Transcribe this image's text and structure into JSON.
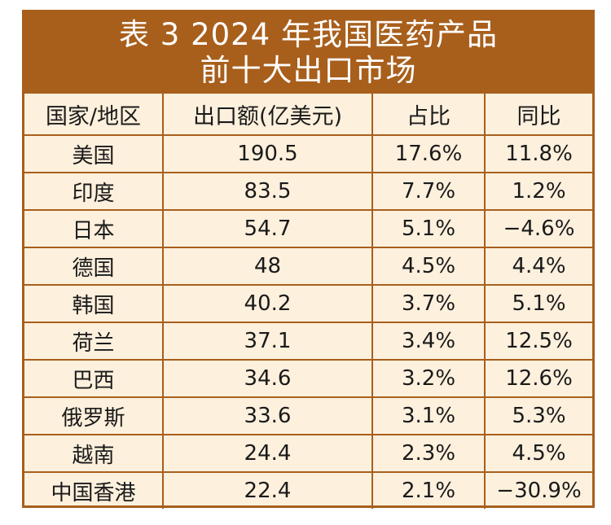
{
  "title": {
    "line1": "表 3  2024 年我国医药产品",
    "line2": "前十大出口市场"
  },
  "headers": [
    "国家/地区",
    "出口额(亿美元)",
    "占比",
    "同比"
  ],
  "rows": [
    [
      "美国",
      "190.5",
      "17.6%",
      "11.8%"
    ],
    [
      "印度",
      "83.5",
      "7.7%",
      "1.2%"
    ],
    [
      "日本",
      "54.7",
      "5.1%",
      "−4.6%"
    ],
    [
      "德国",
      "48",
      "4.5%",
      "4.4%"
    ],
    [
      "韩国",
      "40.2",
      "3.7%",
      "5.1%"
    ],
    [
      "荷兰",
      "37.1",
      "3.4%",
      "12.5%"
    ],
    [
      "巴西",
      "34.6",
      "3.2%",
      "12.6%"
    ],
    [
      "俄罗斯",
      "33.6",
      "3.1%",
      "5.3%"
    ],
    [
      "越南",
      "24.4",
      "2.3%",
      "4.5%"
    ],
    [
      "中国香港",
      "22.4",
      "2.1%",
      "−30.9%"
    ]
  ],
  "colors": {
    "accent": "#a85f1c",
    "background": "#fdf0dd",
    "title_text": "#ffffff"
  }
}
